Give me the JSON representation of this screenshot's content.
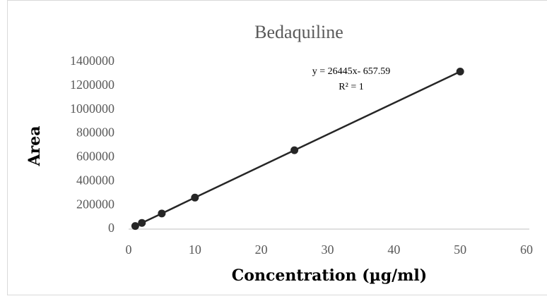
{
  "chart_data": {
    "type": "scatter",
    "title": "Bedaquiline",
    "x_label": "Concentration  (µg/ml)",
    "y_label": "Area",
    "x": [
      1,
      2,
      5,
      10,
      25,
      50
    ],
    "values": [
      26000,
      52000,
      131000,
      264000,
      661000,
      1320000
    ],
    "color": "#262626",
    "xlim": [
      0,
      60
    ],
    "xticks": [
      0,
      10,
      20,
      30,
      40,
      50,
      60
    ],
    "ylim": [
      0,
      1400000
    ],
    "yticks": [
      0,
      200000,
      400000,
      600000,
      800000,
      1000000,
      1200000,
      1400000
    ],
    "annotations": [
      "y = 26445x- 657.59",
      "R² = 1"
    ]
  }
}
